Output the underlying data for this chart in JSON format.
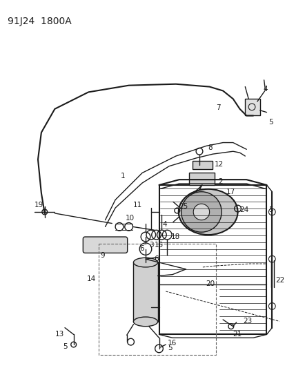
{
  "title": "91J24  1800A",
  "bg_color": "#ffffff",
  "line_color": "#1a1a1a",
  "fig_width": 4.14,
  "fig_height": 5.33,
  "dpi": 100
}
